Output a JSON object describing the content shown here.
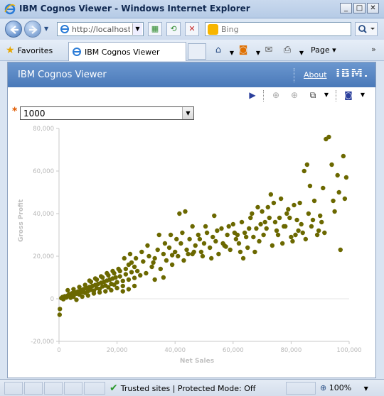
{
  "window": {
    "title": "IBM Cognos Viewer - Windows Internet Explorer",
    "buttons": {
      "minimize": "_",
      "maximize": "□",
      "close": "✕"
    }
  },
  "address_bar": {
    "url": "http://localhost/i",
    "search_placeholder": "Bing"
  },
  "favorites_bar": {
    "favorites_label": "Favorites",
    "tab_label": "IBM Cognos Viewer",
    "page_menu": "Page"
  },
  "cognos": {
    "header_title": "IBM Cognos Viewer",
    "about_link": "About",
    "logo": "IBM."
  },
  "prompt": {
    "required_marker": "*",
    "selected_value": "1000"
  },
  "status_bar": {
    "zone_text": "Trusted sites | Protected Mode: Off",
    "zoom": "100%"
  },
  "colors": {
    "point": "#6b6800",
    "axis_text": "#c8c8c8",
    "header_blue": "#5a86c4"
  },
  "chart_data": {
    "type": "scatter",
    "xlabel": "Net Sales",
    "ylabel": "Gross Profit",
    "xlim": [
      0,
      100000
    ],
    "ylim": [
      -20000,
      80000
    ],
    "x_ticks": [
      "0",
      "20,000",
      "40,000",
      "60,000",
      "80,000",
      "100,000"
    ],
    "y_ticks": [
      "-20,000",
      "0",
      "20,000",
      "40,000",
      "60,000",
      "80,000"
    ],
    "points": [
      [
        200,
        -7500
      ],
      [
        300,
        -4800
      ],
      [
        800,
        300
      ],
      [
        1200,
        800
      ],
      [
        1500,
        -200
      ],
      [
        2000,
        1200
      ],
      [
        2500,
        600
      ],
      [
        3000,
        1500
      ],
      [
        3500,
        2200
      ],
      [
        4000,
        1800
      ],
      [
        4500,
        2600
      ],
      [
        5000,
        1000
      ],
      [
        5500,
        3000
      ],
      [
        6000,
        2400
      ],
      [
        6500,
        3400
      ],
      [
        7000,
        2000
      ],
      [
        7500,
        4000
      ],
      [
        8000,
        3200
      ],
      [
        8500,
        4500
      ],
      [
        9000,
        2800
      ],
      [
        9500,
        5000
      ],
      [
        10000,
        3600
      ],
      [
        10500,
        5500
      ],
      [
        11000,
        4200
      ],
      [
        11500,
        6000
      ],
      [
        12000,
        3800
      ],
      [
        12500,
        6500
      ],
      [
        13000,
        5000
      ],
      [
        13500,
        7000
      ],
      [
        14000,
        4600
      ],
      [
        14500,
        7500
      ],
      [
        15000,
        5800
      ],
      [
        15500,
        8000
      ],
      [
        16000,
        6200
      ],
      [
        16500,
        8500
      ],
      [
        17000,
        5400
      ],
      [
        17500,
        9000
      ],
      [
        18000,
        7000
      ],
      [
        18500,
        9500
      ],
      [
        19000,
        6600
      ],
      [
        19500,
        10000
      ],
      [
        20000,
        7800
      ],
      [
        21000,
        10500
      ],
      [
        22000,
        8400
      ],
      [
        23000,
        11500
      ],
      [
        24000,
        9000
      ],
      [
        25000,
        12500
      ],
      [
        26000,
        9800
      ],
      [
        3000,
        4000
      ],
      [
        4000,
        500
      ],
      [
        5000,
        4500
      ],
      [
        6000,
        -500
      ],
      [
        7000,
        5500
      ],
      [
        8000,
        1000
      ],
      [
        9000,
        6500
      ],
      [
        10000,
        1500
      ],
      [
        11000,
        8000
      ],
      [
        12000,
        2500
      ],
      [
        13000,
        9000
      ],
      [
        14000,
        3000
      ],
      [
        15000,
        10000
      ],
      [
        16000,
        3500
      ],
      [
        17000,
        11000
      ],
      [
        18000,
        4000
      ],
      [
        19000,
        12000
      ],
      [
        20000,
        5000
      ],
      [
        21000,
        13000
      ],
      [
        22000,
        6000
      ],
      [
        23000,
        14000
      ],
      [
        24000,
        16000
      ],
      [
        25000,
        17000
      ],
      [
        26000,
        15000
      ],
      [
        22000,
        3500
      ],
      [
        24000,
        4500
      ],
      [
        26000,
        6000
      ],
      [
        27000,
        13000
      ],
      [
        28000,
        11000
      ],
      [
        29000,
        17500
      ],
      [
        30000,
        12000
      ],
      [
        31000,
        20000
      ],
      [
        32000,
        15000
      ],
      [
        33000,
        19000
      ],
      [
        34000,
        23000
      ],
      [
        35000,
        14000
      ],
      [
        36000,
        21000
      ],
      [
        37000,
        18000
      ],
      [
        38000,
        24000
      ],
      [
        39000,
        16000
      ],
      [
        40000,
        22000
      ],
      [
        41000,
        20000
      ],
      [
        42000,
        26000
      ],
      [
        43000,
        18000
      ],
      [
        44000,
        23000
      ],
      [
        45000,
        28000
      ],
      [
        46000,
        21000
      ],
      [
        47000,
        25000
      ],
      [
        48000,
        30000
      ],
      [
        49000,
        22000
      ],
      [
        50000,
        26000
      ],
      [
        51000,
        31000
      ],
      [
        52000,
        24000
      ],
      [
        53000,
        29000
      ],
      [
        54000,
        27000
      ],
      [
        55000,
        21000
      ],
      [
        56000,
        33000
      ],
      [
        57000,
        25000
      ],
      [
        58000,
        30000
      ],
      [
        59000,
        23000
      ],
      [
        60000,
        35000
      ],
      [
        61000,
        28000
      ],
      [
        62000,
        26000
      ],
      [
        63000,
        36000
      ],
      [
        64000,
        31000
      ],
      [
        65000,
        24000
      ],
      [
        66000,
        38000
      ],
      [
        67000,
        29000
      ],
      [
        68000,
        33000
      ],
      [
        69000,
        27000
      ],
      [
        70000,
        41000
      ],
      [
        71000,
        36000
      ],
      [
        72000,
        43000
      ],
      [
        73000,
        49000
      ],
      [
        74000,
        45000
      ],
      [
        75000,
        32000
      ],
      [
        76000,
        38000
      ],
      [
        77000,
        26000
      ],
      [
        78000,
        34000
      ],
      [
        79000,
        42000
      ],
      [
        80000,
        29000
      ],
      [
        81000,
        44000
      ],
      [
        82000,
        37000
      ],
      [
        83000,
        45000
      ],
      [
        84000,
        31000
      ],
      [
        85000,
        28000
      ],
      [
        86000,
        40000
      ],
      [
        87000,
        34000
      ],
      [
        88000,
        46000
      ],
      [
        89000,
        30000
      ],
      [
        90000,
        39000
      ],
      [
        91000,
        52000
      ],
      [
        92000,
        75000
      ],
      [
        93000,
        76000
      ],
      [
        94000,
        63000
      ],
      [
        95000,
        41000
      ],
      [
        96000,
        58000
      ],
      [
        97000,
        23000
      ],
      [
        98000,
        67000
      ],
      [
        98500,
        47000
      ],
      [
        99000,
        57000
      ],
      [
        96500,
        50000
      ],
      [
        94500,
        46000
      ],
      [
        90500,
        36000
      ],
      [
        85500,
        63000
      ],
      [
        84500,
        60000
      ],
      [
        86500,
        53000
      ],
      [
        82500,
        32000
      ],
      [
        80500,
        27000
      ],
      [
        78500,
        40000
      ],
      [
        76500,
        47000
      ],
      [
        74500,
        36000
      ],
      [
        72500,
        38000
      ],
      [
        70500,
        30000
      ],
      [
        68500,
        43000
      ],
      [
        66500,
        40000
      ],
      [
        64500,
        29000
      ],
      [
        62500,
        22000
      ],
      [
        60500,
        31000
      ],
      [
        58500,
        34000
      ],
      [
        56500,
        26000
      ],
      [
        54500,
        32000
      ],
      [
        52500,
        19000
      ],
      [
        50500,
        34000
      ],
      [
        48500,
        28000
      ],
      [
        46500,
        22000
      ],
      [
        44500,
        21000
      ],
      [
        42500,
        31000
      ],
      [
        40500,
        28000
      ],
      [
        38500,
        30000
      ],
      [
        36500,
        26000
      ],
      [
        34500,
        30000
      ],
      [
        32500,
        17000
      ],
      [
        30500,
        25000
      ],
      [
        28500,
        22000
      ],
      [
        26500,
        19000
      ],
      [
        24500,
        21000
      ],
      [
        22500,
        19000
      ],
      [
        20500,
        14000
      ],
      [
        18500,
        13000
      ],
      [
        16500,
        12000
      ],
      [
        14500,
        10500
      ],
      [
        12500,
        9500
      ],
      [
        10500,
        8500
      ],
      [
        33000,
        9000
      ],
      [
        36000,
        10000
      ],
      [
        39000,
        20500
      ],
      [
        41500,
        40000
      ],
      [
        43500,
        41000
      ],
      [
        46000,
        34000
      ],
      [
        49500,
        20000
      ],
      [
        53500,
        39000
      ],
      [
        57500,
        24500
      ],
      [
        61500,
        30000
      ],
      [
        63500,
        19000
      ],
      [
        65500,
        33000
      ],
      [
        67500,
        22000
      ],
      [
        69500,
        35000
      ],
      [
        71500,
        33000
      ],
      [
        73500,
        25000
      ],
      [
        75500,
        30000
      ],
      [
        77500,
        34000
      ],
      [
        79500,
        38000
      ],
      [
        81500,
        30000
      ],
      [
        83500,
        35000
      ],
      [
        87500,
        37000
      ],
      [
        89500,
        32000
      ],
      [
        91500,
        31000
      ]
    ]
  }
}
